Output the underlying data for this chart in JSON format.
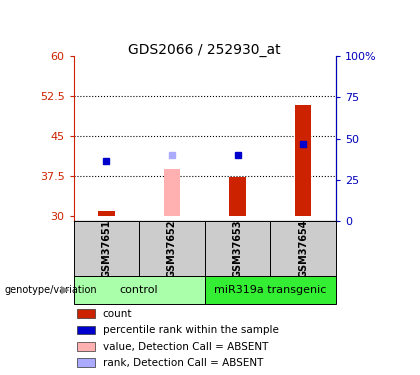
{
  "title": "GDS2066 / 252930_at",
  "samples": [
    "GSM37651",
    "GSM37652",
    "GSM37653",
    "GSM37654"
  ],
  "groups": [
    {
      "label": "control",
      "indices": [
        0,
        1
      ],
      "color": "#AAFFAA"
    },
    {
      "label": "miR319a transgenic",
      "indices": [
        2,
        3
      ],
      "color": "#33EE33"
    }
  ],
  "ylim_left": [
    29,
    60
  ],
  "ylim_right": [
    0,
    100
  ],
  "yticks_left": [
    30,
    37.5,
    45,
    52.5,
    60
  ],
  "yticks_right": [
    0,
    25,
    50,
    75,
    100
  ],
  "ytick_labels_left": [
    "30",
    "37.5",
    "45",
    "52.5",
    "60"
  ],
  "ytick_labels_right": [
    "0",
    "25",
    "50",
    "75",
    "100%"
  ],
  "dotted_lines": [
    37.5,
    45,
    52.5
  ],
  "bar_base": 30,
  "red_bar_values": [
    31.0,
    null,
    37.3,
    50.8
  ],
  "pink_bar_values": [
    null,
    38.8,
    null,
    null
  ],
  "blue_square_values": [
    40.3,
    null,
    41.5,
    43.5
  ],
  "light_blue_square_values": [
    null,
    41.5,
    null,
    null
  ],
  "red_bar_color": "#CC2200",
  "pink_bar_color": "#FFB0B0",
  "blue_square_color": "#0000CC",
  "light_blue_square_color": "#AAAAFF",
  "legend": [
    {
      "label": "count",
      "color": "#CC2200"
    },
    {
      "label": "percentile rank within the sample",
      "color": "#0000CC"
    },
    {
      "label": "value, Detection Call = ABSENT",
      "color": "#FFB0B0"
    },
    {
      "label": "rank, Detection Call = ABSENT",
      "color": "#AAAAFF"
    }
  ],
  "left_axis_color": "#CC2200",
  "right_axis_color": "#0000BB",
  "genotype_label": "genotype/variation",
  "bar_width": 0.25
}
